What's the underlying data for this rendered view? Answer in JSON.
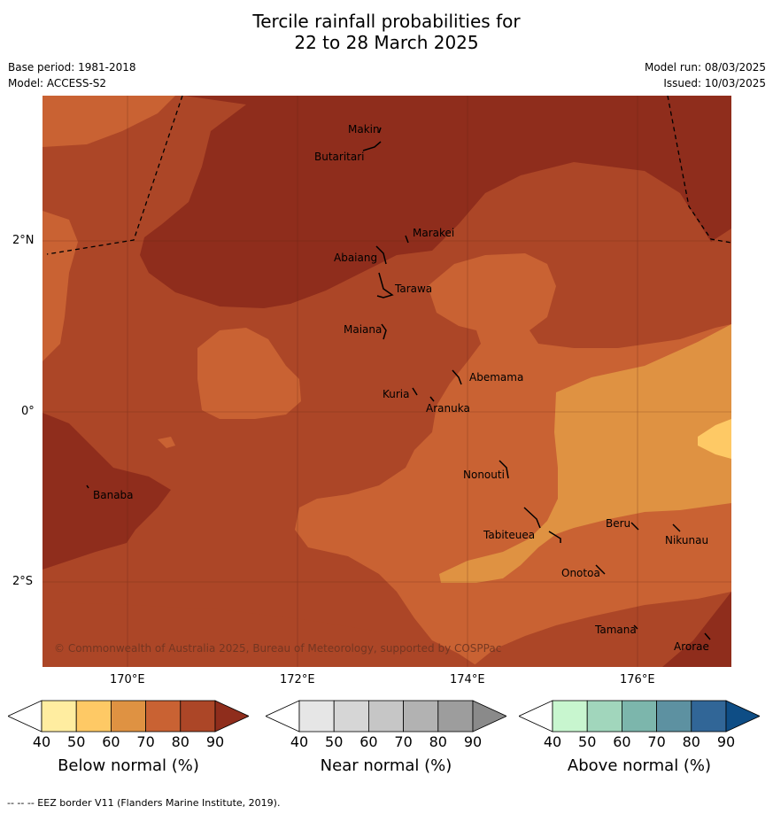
{
  "title": {
    "line1": "Tercile rainfall probabilities for",
    "line2": "22 to 28 March 2025"
  },
  "meta": {
    "base_period": "Base period: 1981-2018",
    "model": "Model: ACCESS-S2",
    "model_run": "Model run: 08/03/2025",
    "issued": "Issued: 10/03/2025"
  },
  "axes": {
    "lat_labels": [
      "2°N",
      "0°",
      "2°S"
    ],
    "lon_labels": [
      "170°E",
      "172°E",
      "174°E",
      "176°E"
    ]
  },
  "places": [
    {
      "name": "Makin"
    },
    {
      "name": "Butaritari"
    },
    {
      "name": "Marakei"
    },
    {
      "name": "Abaiang"
    },
    {
      "name": "Tarawa"
    },
    {
      "name": "Maiana"
    },
    {
      "name": "Abemama"
    },
    {
      "name": "Kuria"
    },
    {
      "name": "Aranuka"
    },
    {
      "name": "Nonouti"
    },
    {
      "name": "Banaba"
    },
    {
      "name": "Tabiteuea"
    },
    {
      "name": "Beru"
    },
    {
      "name": "Nikunau"
    },
    {
      "name": "Onotoa"
    },
    {
      "name": "Tamana"
    },
    {
      "name": "Arorae"
    }
  ],
  "copyright": "© Commonwealth of Australia 2025, Bureau of Meteorology, supported by COSPPac",
  "colorbars": [
    {
      "label": "Below normal (%)",
      "ticks": [
        "40",
        "50",
        "60",
        "70",
        "80",
        "90"
      ],
      "colors": [
        "#ffffff",
        "#ffeda0",
        "#fec965",
        "#df9242",
        "#c96233",
        "#ac4627",
        "#8f2d1c"
      ]
    },
    {
      "label": "Near normal (%)",
      "ticks": [
        "40",
        "50",
        "60",
        "70",
        "80",
        "90"
      ],
      "colors": [
        "#ffffff",
        "#e6e6e6",
        "#d6d6d6",
        "#c6c6c6",
        "#b2b2b2",
        "#9d9d9d",
        "#8a8a8a"
      ]
    },
    {
      "label": "Above normal (%)",
      "ticks": [
        "40",
        "50",
        "60",
        "70",
        "80",
        "90"
      ],
      "colors": [
        "#ffffff",
        "#c8f6cf",
        "#a1d6bc",
        "#7cb6ac",
        "#5d91a1",
        "#316697",
        "#0e4d85"
      ]
    }
  ],
  "footnote": "--  --  -- EEZ border V11 (Flanders Marine Institute, 2019)."
}
